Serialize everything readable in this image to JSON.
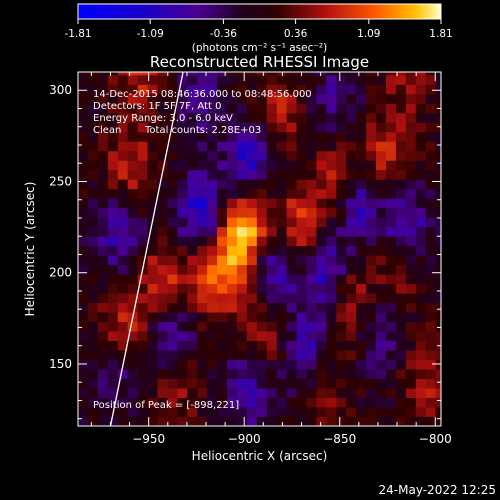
{
  "colorbar": {
    "ticks": [
      -1.81,
      -1.09,
      -0.36,
      0.36,
      1.09,
      1.81
    ],
    "tick_labels": [
      "-1.81",
      "-1.09",
      "-0.36",
      "0.36",
      "1.09",
      "1.81"
    ],
    "unit_label": "(photons cm⁻² s⁻¹ asec⁻²)"
  },
  "chart_data": {
    "type": "heatmap",
    "title": "Reconstructed RHESSI Image",
    "xlabel": "Heliocentric X (arcsec)",
    "ylabel": "Heliocentric Y (arcsec)",
    "xlim": [
      -987,
      -797
    ],
    "ylim": [
      116,
      310
    ],
    "xticks": [
      -950,
      -900,
      -850,
      -800
    ],
    "yticks": [
      150,
      200,
      250,
      300
    ],
    "value_range": [
      -1.81,
      1.81
    ],
    "peak": [
      -898,
      221
    ],
    "limb_line": [
      [
        -970,
        116
      ],
      [
        -932,
        310
      ]
    ],
    "blobs": [
      {
        "x": -900,
        "y": 221,
        "value": 1.81
      },
      {
        "x": -916,
        "y": 200,
        "value": 1.2
      },
      {
        "x": -941,
        "y": 194,
        "value": 1.05
      },
      {
        "x": -964,
        "y": 170,
        "value": 0.95
      },
      {
        "x": -870,
        "y": 225,
        "value": 1.0
      },
      {
        "x": -891,
        "y": 171,
        "value": 0.9
      },
      {
        "x": -850,
        "y": 250,
        "value": 0.85
      },
      {
        "x": -826,
        "y": 262,
        "value": 0.8
      },
      {
        "x": -843,
        "y": 184,
        "value": 0.7
      },
      {
        "x": -960,
        "y": 257,
        "value": 0.75
      },
      {
        "x": -955,
        "y": 310,
        "value": 0.7
      },
      {
        "x": -820,
        "y": 198,
        "value": 0.6
      },
      {
        "x": -882,
        "y": 289,
        "value": 0.65
      },
      {
        "x": -858,
        "y": 140,
        "value": 0.6
      },
      {
        "x": -935,
        "y": 138,
        "value": 0.55
      },
      {
        "x": -805,
        "y": 140,
        "value": 0.55
      },
      {
        "x": -815,
        "y": 305,
        "value": 0.5
      },
      {
        "x": -922,
        "y": 231,
        "value": -1.3
      },
      {
        "x": -886,
        "y": 199,
        "value": -1.2
      },
      {
        "x": -858,
        "y": 202,
        "value": -1.0
      },
      {
        "x": -898,
        "y": 262,
        "value": -1.0
      },
      {
        "x": -938,
        "y": 168,
        "value": -0.95
      },
      {
        "x": -840,
        "y": 240,
        "value": -1.1
      },
      {
        "x": -866,
        "y": 155,
        "value": -0.9
      },
      {
        "x": -965,
        "y": 221,
        "value": -0.8
      },
      {
        "x": -815,
        "y": 226,
        "value": -0.9
      },
      {
        "x": -898,
        "y": 139,
        "value": -0.85
      },
      {
        "x": -968,
        "y": 150,
        "value": -0.7
      },
      {
        "x": -829,
        "y": 170,
        "value": -0.7
      },
      {
        "x": -923,
        "y": 298,
        "value": -0.6
      },
      {
        "x": -853,
        "y": 295,
        "value": -0.55
      }
    ]
  },
  "info": {
    "time_range": "14-Dec-2015 08:46:36.000 to 08:48:56.000",
    "detectors": "Detectors: 1F 5F 7F, Att 0",
    "energy": "Energy Range: 3.0 - 6.0 keV",
    "method": "Clean",
    "counts": "Total counts: 2.28E+03",
    "peak_label": "Position of Peak = [-898,221]"
  },
  "footer_date": "24-May-2022 12:25"
}
